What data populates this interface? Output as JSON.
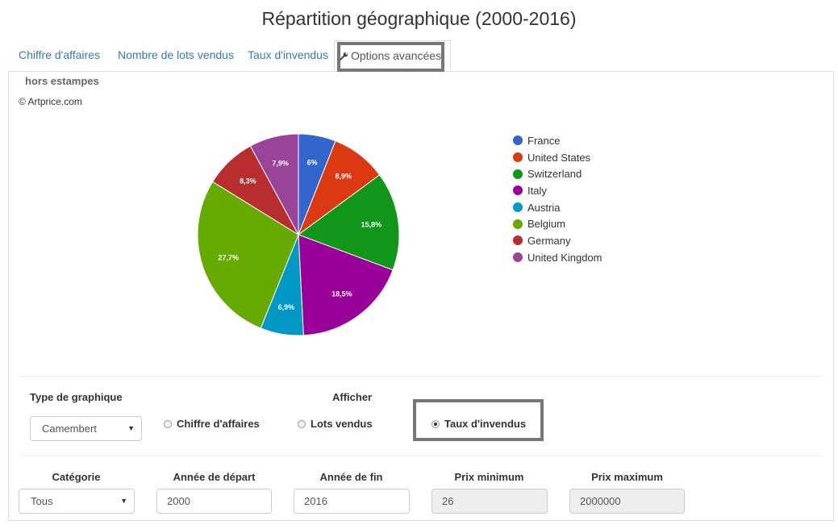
{
  "page": {
    "title": "Répartition géographique (2000-2016)"
  },
  "tabs": [
    {
      "label": "Chiffre d'affaires"
    },
    {
      "label": "Nombre de lots vendus"
    },
    {
      "label": "Taux d'invendus"
    },
    {
      "label": "Options avancées",
      "icon": "wrench-icon"
    }
  ],
  "chart_header": {
    "subtitle": "hors estampes",
    "credit": "© Artprice.com"
  },
  "chart_data": {
    "type": "pie",
    "categories": [
      "France",
      "United States",
      "Switzerland",
      "Italy",
      "Austria",
      "Belgium",
      "Germany",
      "United Kingdom"
    ],
    "values": [
      6,
      8.9,
      15.8,
      18.5,
      6.9,
      27.7,
      8.3,
      7.9
    ],
    "labels": [
      "6%",
      "8,9%",
      "15,8%",
      "18,5%",
      "6,9%",
      "27,7%",
      "8,3%",
      "7,9%"
    ],
    "colors": [
      "#3366cc",
      "#dc3912",
      "#109618",
      "#990099",
      "#0099c6",
      "#66aa00",
      "#b82e2e",
      "#994499"
    ],
    "legend_position": "right"
  },
  "controls": {
    "chart_type_label": "Type de graphique",
    "chart_type_value": "Camembert",
    "display_label": "Afficher",
    "radios": [
      {
        "label": "Chiffre d'affaires",
        "checked": false
      },
      {
        "label": "Lots vendus",
        "checked": false
      },
      {
        "label": "Taux d'invendus",
        "checked": true
      }
    ]
  },
  "filters": {
    "category": {
      "label": "Catégorie",
      "value": "Tous"
    },
    "start_year": {
      "label": "Année de départ",
      "value": "2000"
    },
    "end_year": {
      "label": "Année de fin",
      "value": "2016"
    },
    "min_price": {
      "label": "Prix minimum",
      "value": "26"
    },
    "max_price": {
      "label": "Prix maximum",
      "value": "2000000"
    }
  }
}
